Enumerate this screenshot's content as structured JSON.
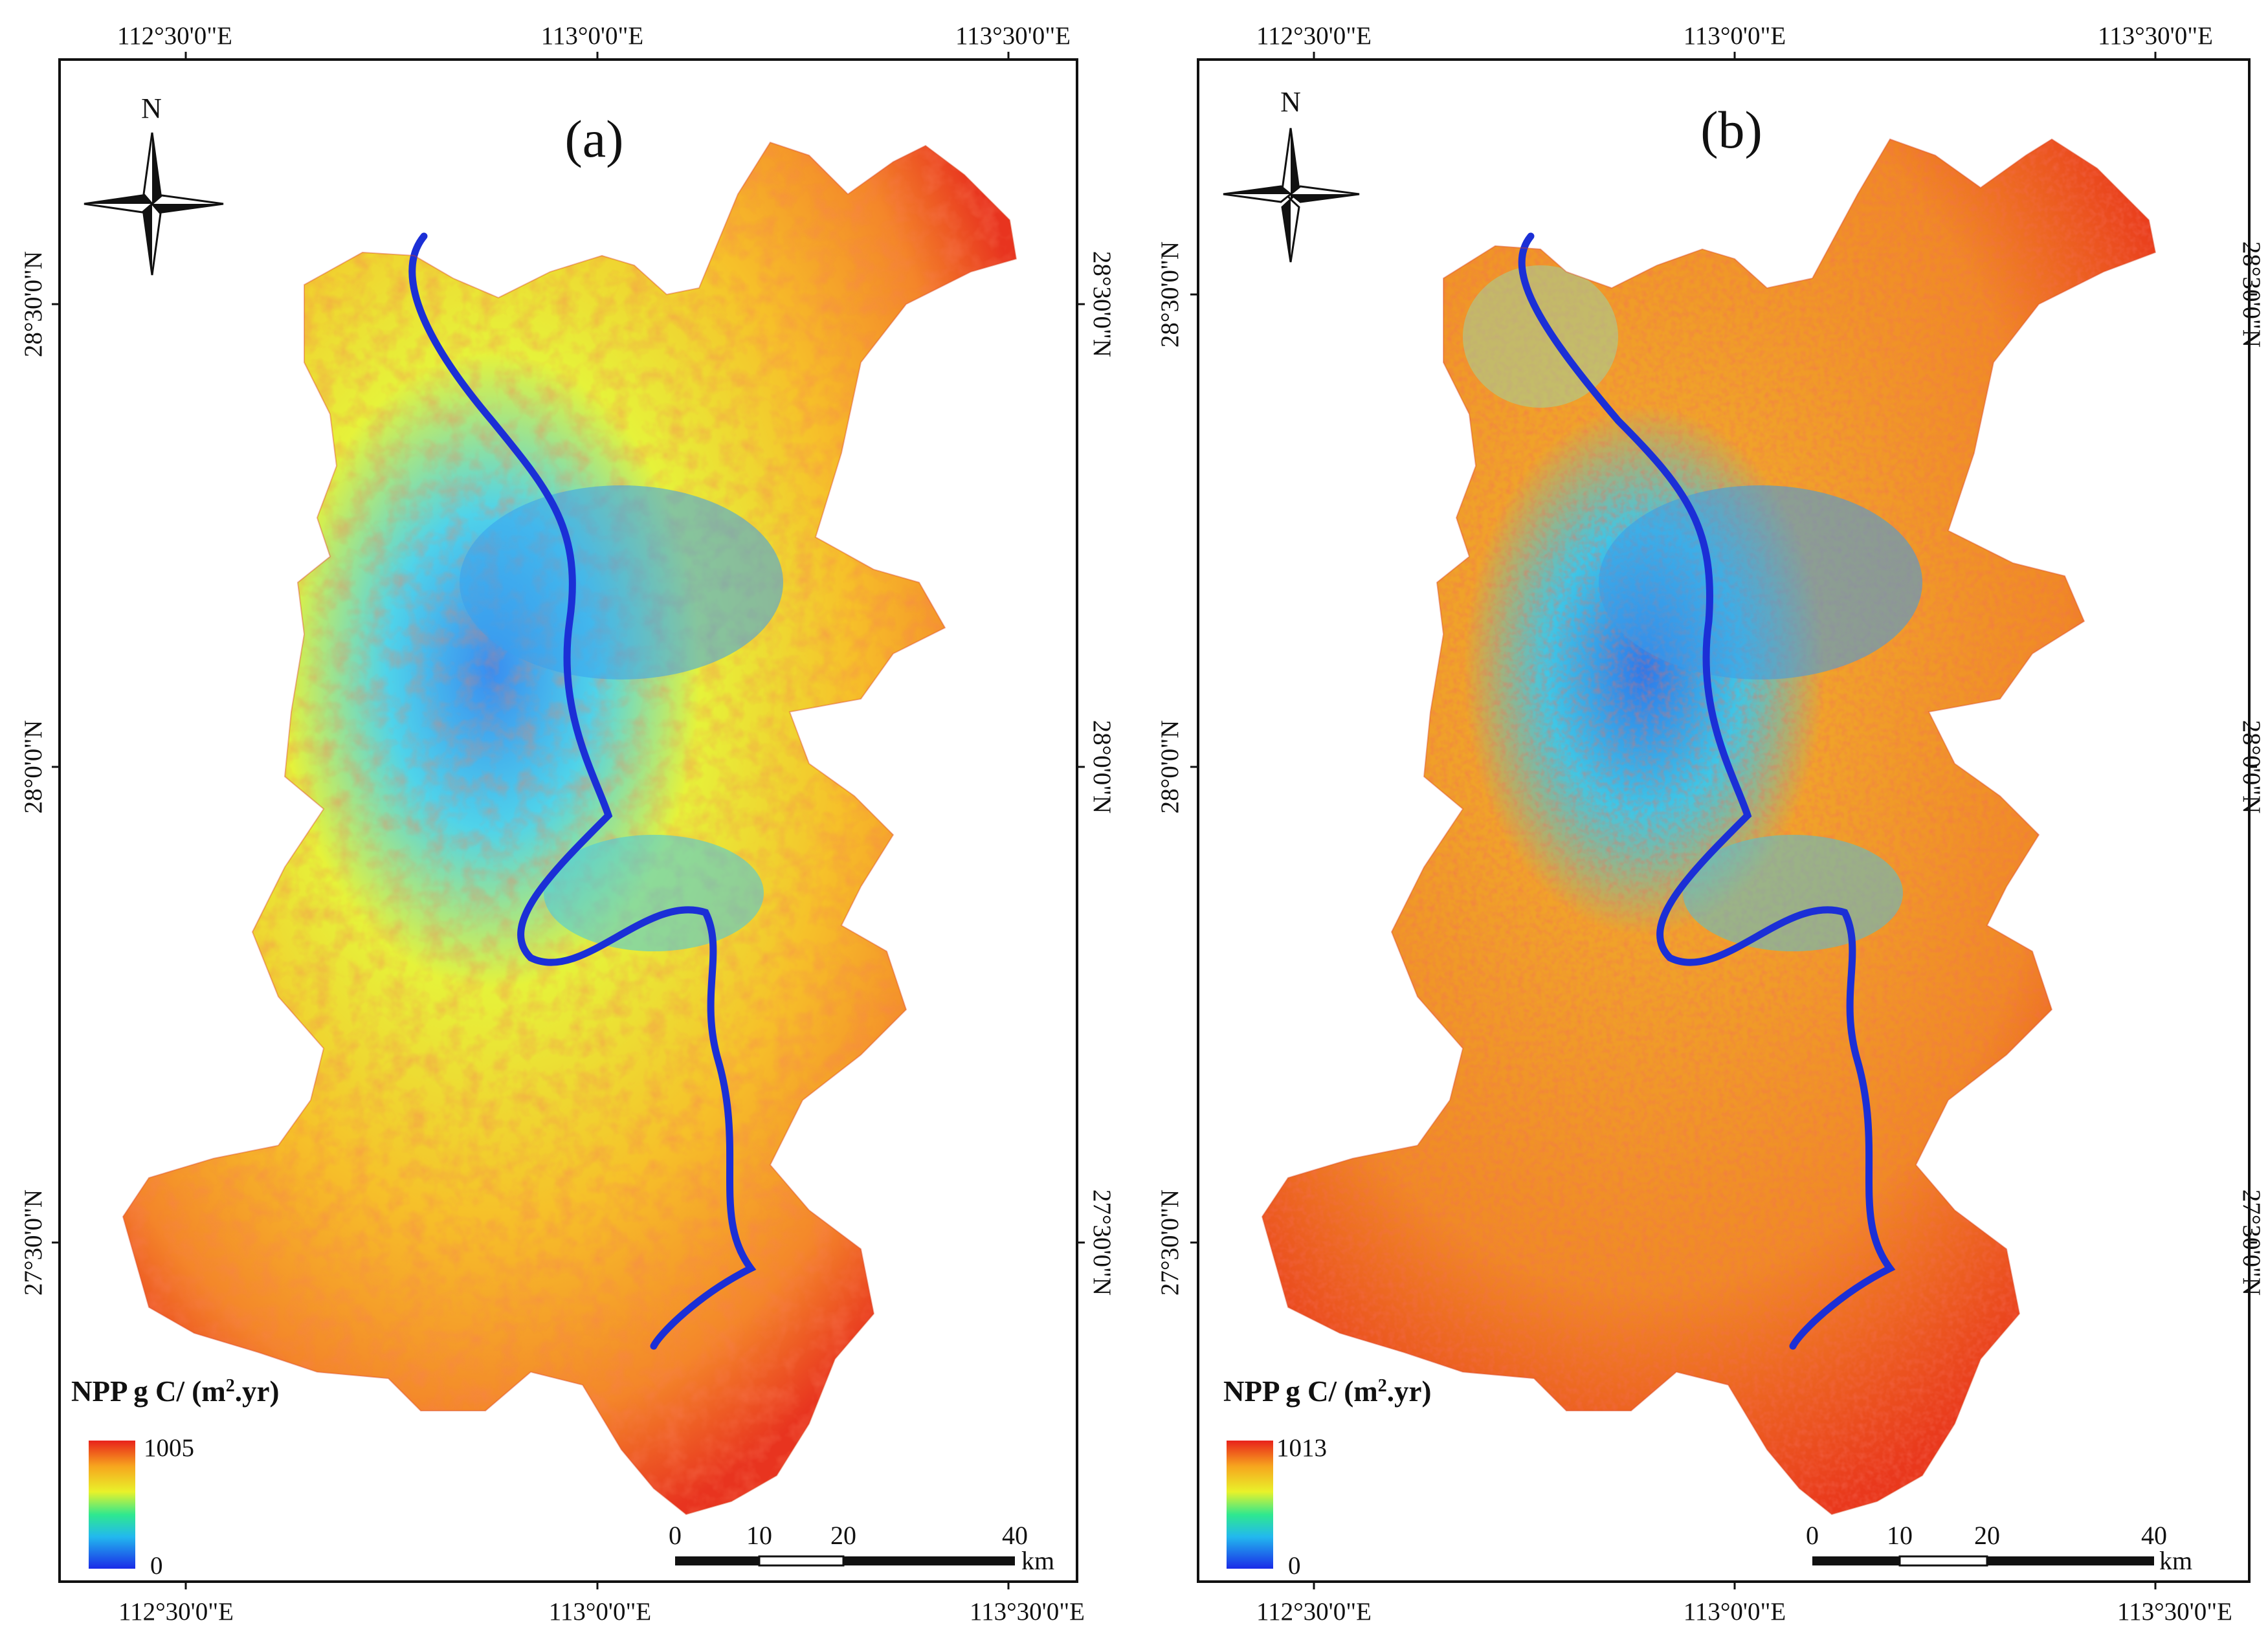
{
  "panels": [
    {
      "id": "a",
      "label": "(a)",
      "top_lon_labels": [
        "112°30'0\"E",
        "113°0'0\"E",
        "113°30'0\"E"
      ],
      "bottom_lon_labels": [
        "112°30'0\"E",
        "113°0'0\"E",
        "113°30'0\"E"
      ],
      "left_lat_labels": [
        "28°30'0\"N",
        "28°0'0\"N",
        "27°30'0\"N"
      ],
      "right_lat_labels": [
        "28°30'0\"N",
        "28°0'0\"N",
        "27°30'0\"N"
      ],
      "north_label": "N",
      "legend": {
        "title": "NPP  g C/ (m",
        "title_sup": "2",
        "title_tail": ".yr)",
        "max": "1005",
        "min": "0"
      },
      "scale_bar": {
        "ticks": [
          "0",
          "10",
          "20",
          "40"
        ],
        "unit": "km"
      }
    },
    {
      "id": "b",
      "label": "(b)",
      "top_lon_labels": [
        "112°30'0\"E",
        "113°0'0\"E",
        "113°30'0\"E"
      ],
      "bottom_lon_labels": [
        "112°30'0\"E",
        "113°0'0\"E",
        "113°30'0\"E"
      ],
      "left_lat_labels": [
        "28°30'0\"N",
        "28°0'0\"N",
        "27°30'0\"N"
      ],
      "right_lat_labels": [
        "28°30'0\"N",
        "28°0'0\"N",
        "27°30'0\"N"
      ],
      "north_label": "N",
      "legend": {
        "title": "NPP  g C/ (m",
        "title_sup": "2",
        "title_tail": ".yr)",
        "max": "1013",
        "min": "0"
      },
      "scale_bar": {
        "ticks": [
          "0",
          "10",
          "20",
          "40"
        ],
        "unit": "km"
      }
    }
  ],
  "colors": {
    "high": "#e8261c",
    "mid_high": "#f5a020",
    "mid": "#f2f22c",
    "mid_low": "#2ee6c8",
    "low": "#1a34e6",
    "river": "#1b2fd6",
    "frame": "#111111"
  }
}
